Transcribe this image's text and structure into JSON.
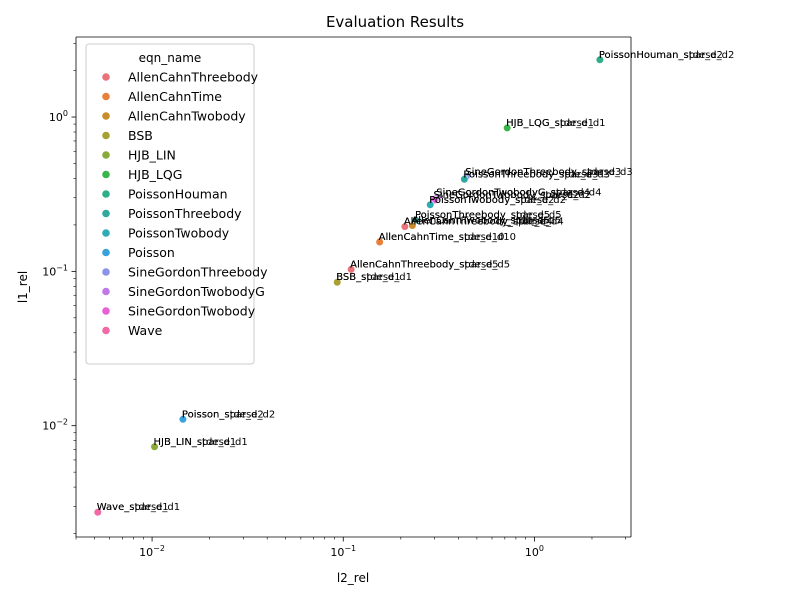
{
  "chart_data": {
    "type": "scatter",
    "title": "Evaluation Results",
    "xlabel": "l2_rel",
    "ylabel": "l1_rel",
    "xscale": "log",
    "yscale": "log",
    "xlim": [
      0.004,
      3.2
    ],
    "ylim": [
      0.0019,
      3.3
    ],
    "x_ticks": [
      {
        "value": 0.01,
        "label": "10",
        "exp": "−2"
      },
      {
        "value": 0.1,
        "label": "10",
        "exp": "−1"
      },
      {
        "value": 1,
        "label": "10",
        "exp": "0"
      }
    ],
    "y_ticks": [
      {
        "value": 0.01,
        "label": "10",
        "exp": "−2"
      },
      {
        "value": 0.1,
        "label": "10",
        "exp": "−1"
      },
      {
        "value": 1,
        "label": "10",
        "exp": "0"
      }
    ],
    "grid": false,
    "legend": {
      "title": "eqn_name",
      "placement": "top-left",
      "entries": [
        {
          "name": "AllenCahnThreebody",
          "color": "#e8737a"
        },
        {
          "name": "AllenCahnTime",
          "color": "#e8803a"
        },
        {
          "name": "AllenCahnTwobody",
          "color": "#c98e2a"
        },
        {
          "name": "BSB",
          "color": "#a8a030"
        },
        {
          "name": "HJB_LIN",
          "color": "#8aaa3a"
        },
        {
          "name": "HJB_LQG",
          "color": "#3ab54a"
        },
        {
          "name": "PoissonHouman",
          "color": "#2fae8a"
        },
        {
          "name": "PoissonThreebody",
          "color": "#30a9a0"
        },
        {
          "name": "PoissonTwobody",
          "color": "#2fabb6"
        },
        {
          "name": "Poisson",
          "color": "#38a2dc"
        },
        {
          "name": "SineGordonThreebody",
          "color": "#8b93e8"
        },
        {
          "name": "SineGordonTwobodyG",
          "color": "#c07ae8"
        },
        {
          "name": "SineGordonTwobody",
          "color": "#e860d8"
        },
        {
          "name": "Wave",
          "color": "#ef6aa6"
        }
      ]
    },
    "points": [
      {
        "series": "PoissonHouman",
        "x": 2.2,
        "y": 2.35,
        "labels": [
          "PoissonHouman_sparse_d2",
          "PoissonHouman_stde_d2"
        ]
      },
      {
        "series": "HJB_LQG",
        "x": 0.72,
        "y": 0.85,
        "labels": [
          "HJB_LQG_sparse_d1",
          "HJB_LQG_stde_d1"
        ]
      },
      {
        "series": "SineGordonThreebody",
        "x": 0.44,
        "y": 0.41,
        "labels": [
          "SineGordonThreebody_sparse_d3",
          "SineGordonThreebody_stde_d3"
        ]
      },
      {
        "series": "PoissonThreebody",
        "x": 0.43,
        "y": 0.395,
        "labels": [
          "PoissonThreebody_sparse_d3",
          "PoissonThreebody_stde_d3"
        ]
      },
      {
        "series": "SineGordonTwobodyG",
        "x": 0.31,
        "y": 0.3,
        "labels": [
          "SineGordonTwobodyG_sparse_d4",
          "SineGordonTwobodyG_stde_d4"
        ]
      },
      {
        "series": "SineGordonTwobody",
        "x": 0.3,
        "y": 0.29,
        "labels": [
          "SineGordonTwobody_sparse_d2",
          "SineGordonTwobody_stde_d2"
        ]
      },
      {
        "series": "PoissonTwobody",
        "x": 0.285,
        "y": 0.27,
        "labels": [
          "PoissonTwobody_sparse_d2",
          "PoissonTwobody_stde_d2"
        ]
      },
      {
        "series": "PoissonThreebody",
        "x": 0.24,
        "y": 0.215,
        "labels": [
          "PoissonThreebody_sparse_d5",
          "PoissonThreebody_stde_d5"
        ]
      },
      {
        "series": "AllenCahnTwobody",
        "x": 0.23,
        "y": 0.198,
        "labels": [
          "AllenCahnTwobody_sparse_d5",
          "AllenCahnTwobody_stde_d5"
        ]
      },
      {
        "series": "AllenCahnThreebody",
        "x": 0.21,
        "y": 0.195,
        "labels": [
          "AllenCahnThreebody_sparse_d4",
          "AllenCahnThreebody_stde_d4"
        ]
      },
      {
        "series": "AllenCahnTime",
        "x": 0.155,
        "y": 0.155,
        "labels": [
          "AllenCahnTime_sparse_d10",
          "AllenCahnTime_stde_d10"
        ]
      },
      {
        "series": "AllenCahnThreebody",
        "x": 0.11,
        "y": 0.103,
        "labels": [
          "AllenCahnThreebody_sparse_d5",
          "AllenCahnThreebody_stde_d5"
        ]
      },
      {
        "series": "BSB",
        "x": 0.093,
        "y": 0.085,
        "labels": [
          "BSB_sparse_d1",
          "BSB_stde_d1"
        ]
      },
      {
        "series": "Poisson",
        "x": 0.0145,
        "y": 0.011,
        "labels": [
          "Poisson_sparse_d2",
          "Poisson_stde_d2"
        ]
      },
      {
        "series": "HJB_LIN",
        "x": 0.0103,
        "y": 0.0073,
        "labels": [
          "HJB_LIN_sparse_d1",
          "HJB_LIN_stde_d1"
        ]
      },
      {
        "series": "Wave",
        "x": 0.0052,
        "y": 0.00275,
        "labels": [
          "Wave_sparse_d1",
          "Wave_stde_d1"
        ]
      }
    ]
  }
}
